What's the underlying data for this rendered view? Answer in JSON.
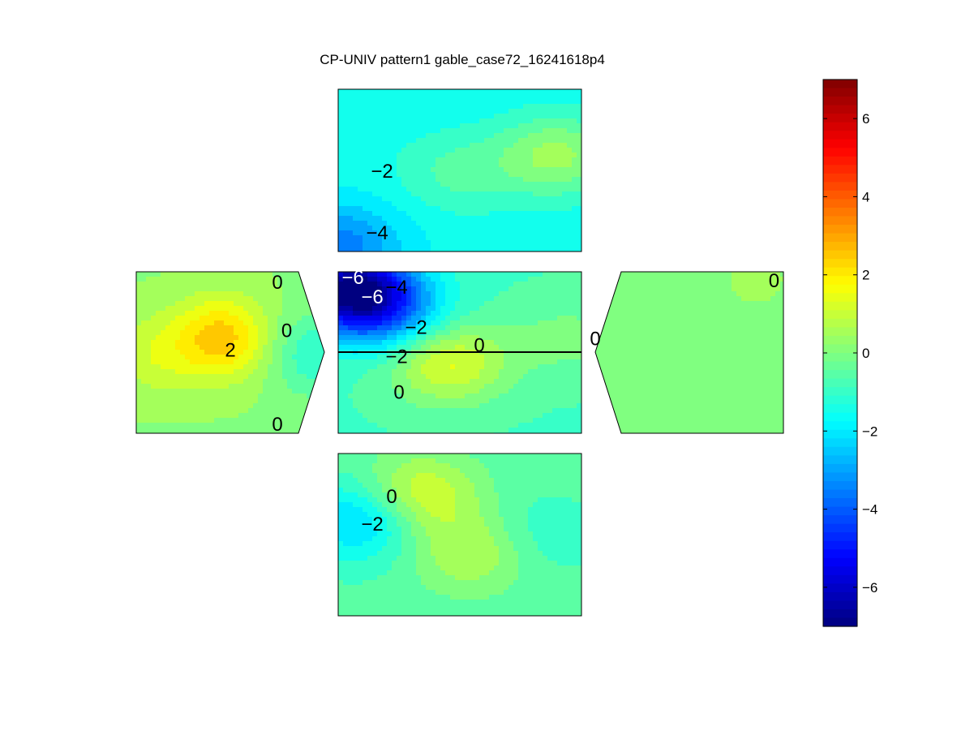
{
  "chart_data": {
    "type": "heatmap",
    "title": "CP-UNIV pattern1 gable_case72_16241618p4",
    "colormap": "jet",
    "clim": [
      -7,
      7
    ],
    "colorbar": {
      "position": "right",
      "ticks": [
        -6,
        -4,
        -2,
        0,
        2,
        4,
        6
      ],
      "tick_labels": [
        "−6",
        "−4",
        "−2",
        "0",
        "2",
        "4",
        "6"
      ]
    },
    "contour_step": 0.5,
    "panels": [
      {
        "name": "top-roof",
        "base": -1.6,
        "peaks": [
          {
            "x": 0.0,
            "y": 0.95,
            "v": -3.6
          },
          {
            "x": 0.1,
            "y": 0.4,
            "v": -1.5
          },
          {
            "x": 0.5,
            "y": 0.5,
            "v": -0.6
          },
          {
            "x": 0.9,
            "y": 0.4,
            "v": 0.4
          }
        ],
        "contour_labels": [
          {
            "x": 0.18,
            "y": 0.5,
            "text": "−2"
          },
          {
            "x": 0.16,
            "y": 0.88,
            "text": "−4"
          }
        ]
      },
      {
        "name": "left-wall",
        "base": 0.2,
        "peaks": [
          {
            "x": 0.45,
            "y": 0.4,
            "v": 2.5
          },
          {
            "x": 0.1,
            "y": 0.5,
            "v": 1.1
          },
          {
            "x": 0.95,
            "y": 0.5,
            "v": -1.2
          }
        ],
        "contour_labels": [
          {
            "x": 0.75,
            "y": 0.06,
            "text": "0"
          },
          {
            "x": 0.8,
            "y": 0.36,
            "text": "0"
          },
          {
            "x": 0.5,
            "y": 0.48,
            "text": "2"
          },
          {
            "x": 0.75,
            "y": 0.94,
            "text": "0"
          }
        ]
      },
      {
        "name": "center",
        "base": -0.8,
        "peaks": [
          {
            "x": 0.05,
            "y": 0.1,
            "v": -6.5
          },
          {
            "x": 0.2,
            "y": 0.25,
            "v": -3.0
          },
          {
            "x": 0.45,
            "y": 0.55,
            "v": 1.4
          },
          {
            "x": 0.95,
            "y": 0.4,
            "v": -0.1
          }
        ],
        "contour_labels": [
          {
            "x": 0.06,
            "y": 0.03,
            "text": "−6"
          },
          {
            "x": 0.14,
            "y": 0.15,
            "text": "−6"
          },
          {
            "x": 0.24,
            "y": 0.09,
            "text": "−4"
          },
          {
            "x": 0.32,
            "y": 0.34,
            "text": "−2"
          },
          {
            "x": 0.24,
            "y": 0.52,
            "text": "−2"
          },
          {
            "x": 0.58,
            "y": 0.45,
            "text": "0"
          },
          {
            "x": 0.25,
            "y": 0.74,
            "text": "0"
          }
        ]
      },
      {
        "name": "right-wall",
        "base": -0.15,
        "peaks": [
          {
            "x": 0.85,
            "y": 0.05,
            "v": 0.4
          }
        ],
        "contour_labels": [
          {
            "x": 0.95,
            "y": 0.05,
            "text": "0"
          },
          {
            "x": 0.0,
            "y": 0.41,
            "text": "0"
          }
        ]
      },
      {
        "name": "bottom-roof",
        "base": -0.6,
        "peaks": [
          {
            "x": 0.33,
            "y": 0.25,
            "v": 1.4
          },
          {
            "x": 0.1,
            "y": 0.4,
            "v": -2.6
          },
          {
            "x": 0.55,
            "y": 0.6,
            "v": 0.8
          },
          {
            "x": 0.8,
            "y": 0.5,
            "v": -1.2
          }
        ],
        "contour_labels": [
          {
            "x": 0.22,
            "y": 0.26,
            "text": "0"
          },
          {
            "x": 0.14,
            "y": 0.43,
            "text": "−2"
          }
        ]
      }
    ]
  }
}
